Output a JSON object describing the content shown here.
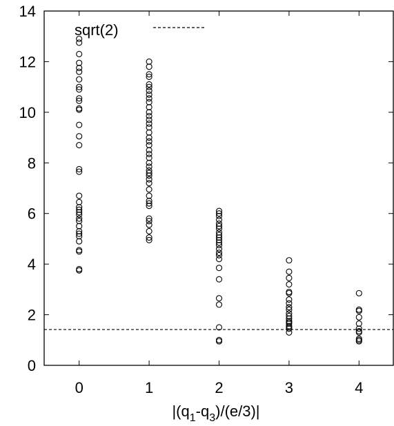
{
  "chart_data": {
    "type": "scatter",
    "xlabel_main": "|(q",
    "xlabel_sub1": "1",
    "xlabel_mid": "-q",
    "xlabel_sub2": "3",
    "xlabel_tail": ")/(e/3)|",
    "ylabel": "",
    "xlim": [
      -0.5,
      4.5
    ],
    "ylim": [
      0,
      14
    ],
    "xticks": [
      "0",
      "1",
      "2",
      "3",
      "4"
    ],
    "yticks": [
      "0",
      "2",
      "4",
      "6",
      "8",
      "10",
      "12",
      "14"
    ],
    "grid": false,
    "legend_position": "top-left",
    "reference_line": {
      "name": "sqrt(2)",
      "y": 1.4142,
      "style": "dashed"
    },
    "series": [
      {
        "x": 0,
        "values": [
          12.9,
          12.75,
          12.3,
          11.95,
          11.75,
          11.6,
          11.3,
          11.0,
          10.9,
          10.55,
          10.45,
          10.15,
          10.1,
          9.5,
          9.05,
          8.7,
          7.75,
          7.65,
          6.7,
          6.45,
          6.25,
          6.15,
          6.05,
          5.95,
          5.8,
          5.7,
          5.5,
          5.3,
          5.2,
          5.1,
          4.9,
          4.55,
          4.5,
          3.8,
          3.75
        ]
      },
      {
        "x": 1,
        "values": [
          12.0,
          11.8,
          11.5,
          11.4,
          11.1,
          11.0,
          10.85,
          10.7,
          10.55,
          10.4,
          10.2,
          10.0,
          9.85,
          9.7,
          9.55,
          9.4,
          9.2,
          9.0,
          8.85,
          8.7,
          8.5,
          8.35,
          8.2,
          8.0,
          7.85,
          7.7,
          7.6,
          7.5,
          7.35,
          7.2,
          6.95,
          6.7,
          6.5,
          6.4,
          6.3,
          5.8,
          5.7,
          5.55,
          5.3,
          5.05,
          4.95
        ]
      },
      {
        "x": 2,
        "values": [
          6.1,
          6.0,
          5.9,
          5.75,
          5.6,
          5.5,
          5.4,
          5.25,
          5.15,
          5.05,
          4.95,
          4.85,
          4.75,
          4.6,
          4.45,
          4.35,
          4.2,
          3.85,
          3.4,
          2.65,
          2.4,
          1.5,
          1.0,
          0.95
        ]
      },
      {
        "x": 3,
        "values": [
          4.15,
          3.7,
          3.45,
          3.2,
          2.9,
          2.85,
          2.6,
          2.45,
          2.3,
          2.2,
          2.05,
          1.95,
          1.85,
          1.75,
          1.7,
          1.65,
          1.55,
          1.5,
          1.45,
          1.3
        ]
      },
      {
        "x": 4,
        "values": [
          2.85,
          2.2,
          2.15,
          1.9,
          1.65,
          1.45,
          1.35,
          1.3,
          1.05,
          1.0,
          0.95
        ]
      }
    ]
  }
}
